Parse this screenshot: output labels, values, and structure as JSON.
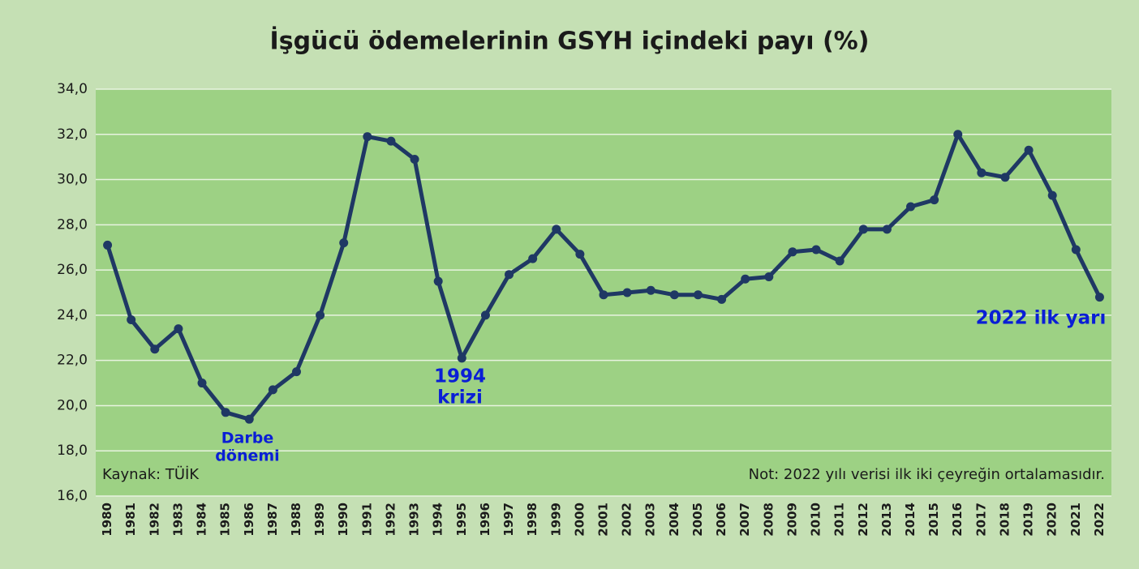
{
  "chart_data": {
    "type": "line",
    "title": "İşgücü ödemelerinin GSYH içindeki payı (%)",
    "categories": [
      "1980",
      "1981",
      "1982",
      "1983",
      "1984",
      "1985",
      "1986",
      "1987",
      "1988",
      "1989",
      "1990",
      "1991",
      "1992",
      "1993",
      "1994",
      "1995",
      "1996",
      "1997",
      "1998",
      "1999",
      "2000",
      "2001",
      "2002",
      "2003",
      "2004",
      "2005",
      "2006",
      "2007",
      "2008",
      "2009",
      "2010",
      "2011",
      "2012",
      "2013",
      "2014",
      "2015",
      "2016",
      "2017",
      "2018",
      "2019",
      "2020",
      "2021",
      "2022"
    ],
    "values": [
      27.1,
      23.8,
      22.5,
      23.4,
      21.0,
      19.7,
      19.4,
      20.7,
      21.5,
      24.0,
      27.2,
      31.9,
      31.7,
      30.9,
      25.5,
      22.1,
      24.0,
      25.8,
      26.5,
      27.8,
      26.7,
      24.9,
      25.0,
      25.1,
      24.9,
      24.9,
      24.7,
      25.6,
      25.7,
      26.8,
      26.9,
      26.4,
      27.8,
      27.8,
      28.8,
      29.1,
      32.0,
      30.3,
      30.1,
      31.3,
      29.3,
      26.9,
      24.8
    ],
    "color": "#1f3864",
    "ylim": [
      16,
      34
    ],
    "yticks": [
      {
        "value": 16,
        "label": "16,0"
      },
      {
        "value": 18,
        "label": "18,0"
      },
      {
        "value": 20,
        "label": "20,0"
      },
      {
        "value": 22,
        "label": "22,0"
      },
      {
        "value": 24,
        "label": "24,0"
      },
      {
        "value": 26,
        "label": "26,0"
      },
      {
        "value": 28,
        "label": "28,0"
      },
      {
        "value": 30,
        "label": "30,0"
      },
      {
        "value": 32,
        "label": "32,0"
      },
      {
        "value": 34,
        "label": "34,0"
      }
    ],
    "grid": true,
    "annotations": [
      [
        "Darbe",
        "dönemi"
      ],
      [
        "1994",
        "krizi"
      ],
      [
        "2022 ilk yarı"
      ]
    ],
    "source": "Kaynak: TÜİK",
    "note": "Not:  2022 yılı verisi ilk iki çeyreğin ortalamasıdır."
  }
}
